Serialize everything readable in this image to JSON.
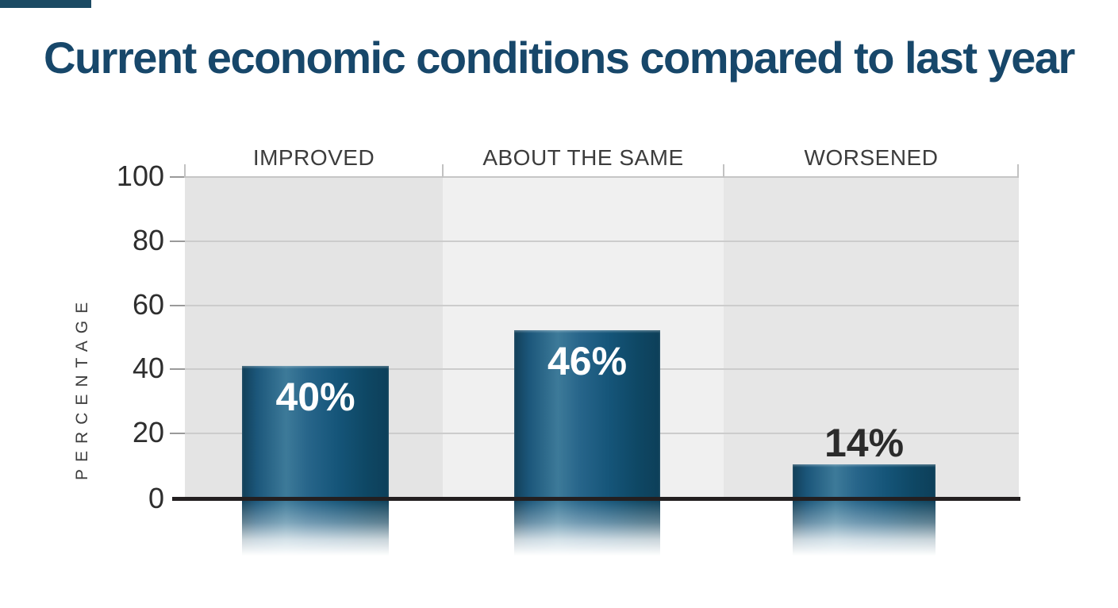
{
  "title": "Current economic conditions compared to last year",
  "chart_data": {
    "type": "bar",
    "title": "Current economic conditions compared to last year",
    "categories": [
      "IMPROVED",
      "ABOUT THE SAME",
      "WORSENED"
    ],
    "values": [
      40,
      46,
      14
    ],
    "value_labels": [
      "40%",
      "46%",
      "14%"
    ],
    "xlabel": "",
    "ylabel": "PERCENTAGE",
    "yticks": [
      0,
      20,
      40,
      60,
      80,
      100
    ],
    "ylim": [
      0,
      100
    ],
    "grid": true,
    "legend": false,
    "value_label_placement": [
      "inside-top",
      "inside-top",
      "above-bar"
    ]
  },
  "y_axis": {
    "label": "PERCENTAGE",
    "ticks": [
      "100",
      "80",
      "60",
      "40",
      "20",
      "0"
    ]
  },
  "columns": [
    {
      "header": "IMPROVED",
      "value_label": "40%"
    },
    {
      "header": "ABOUT THE SAME",
      "value_label": "46%"
    },
    {
      "header": "WORSENED",
      "value_label": "14%"
    }
  ],
  "colors": {
    "title": "#17476a",
    "accent_bar": "#1b4a63",
    "bar_dark": "#0d3f59",
    "bar_highlight": "#3d7a99",
    "panel_gray_dark": "#e4e4e4",
    "panel_gray_light": "#f0f0f0",
    "baseline": "#231f20",
    "gridline": "#cccccc",
    "label_on_bar": "#ffffff",
    "label_above_bar": "#2b2b2b"
  }
}
